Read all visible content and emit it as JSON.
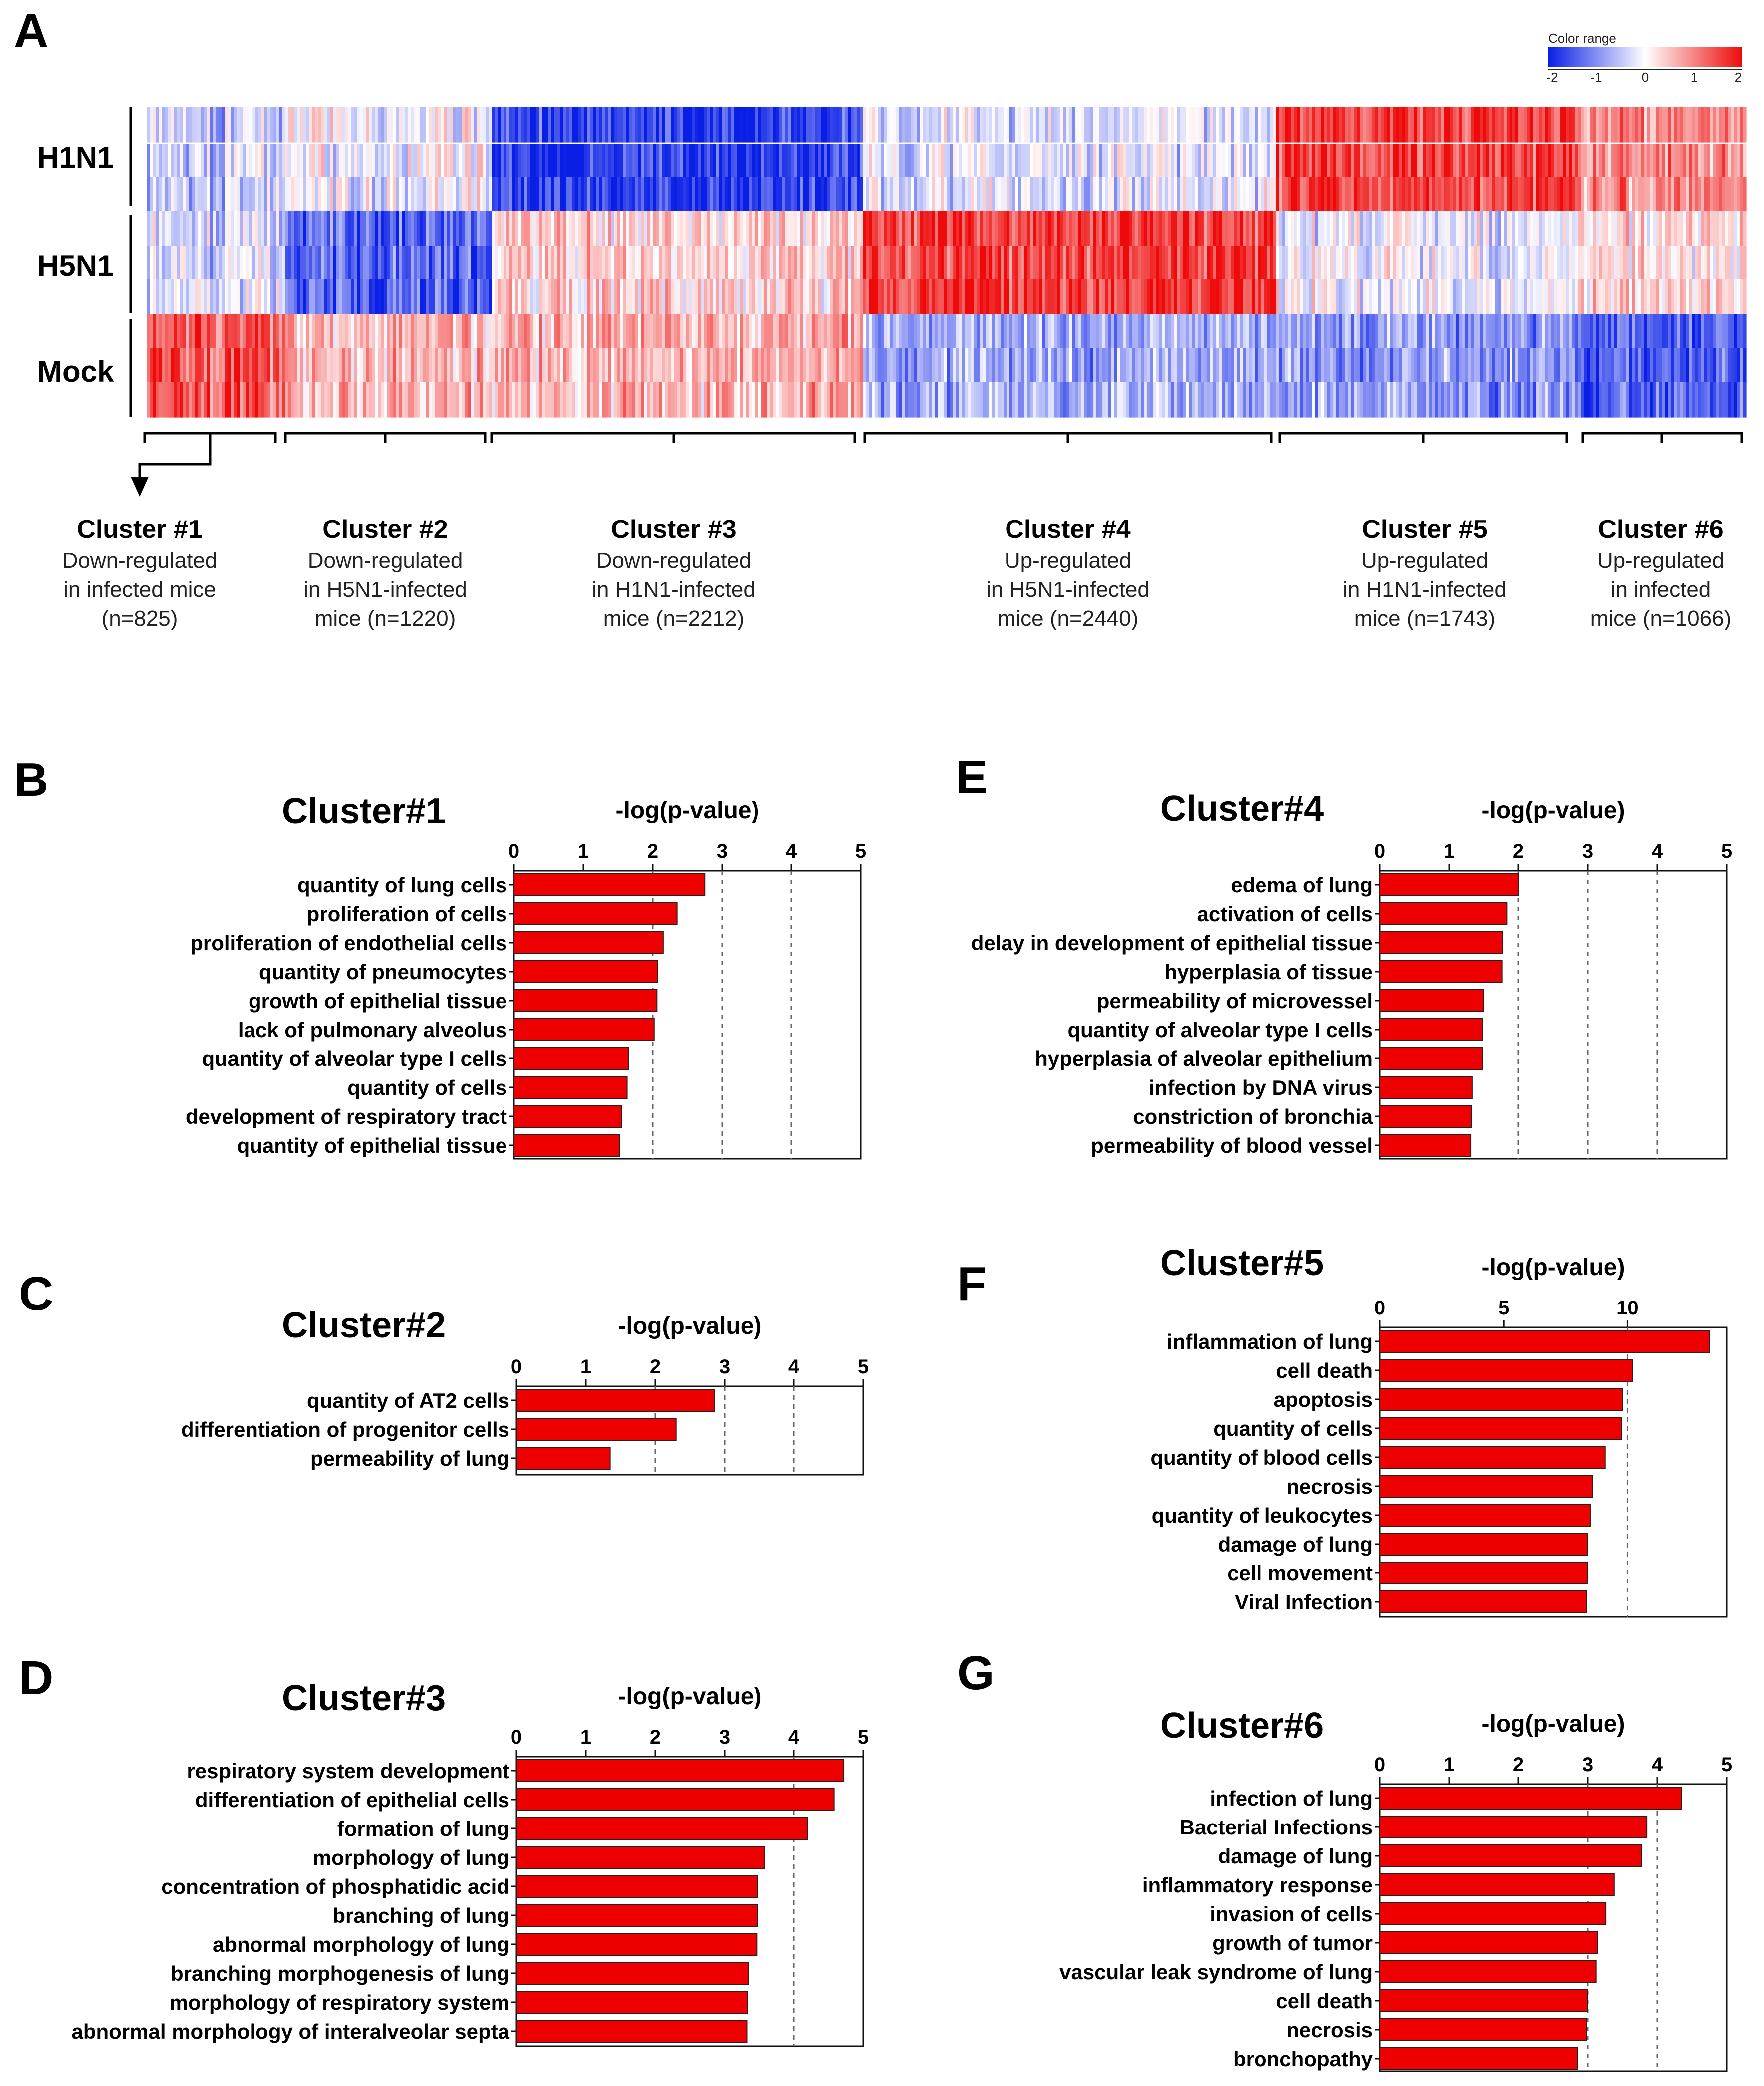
{
  "panels": {
    "A": "A",
    "B": "B",
    "C": "C",
    "D": "D",
    "E": "E",
    "F": "F",
    "G": "G"
  },
  "heatmap": {
    "rows": [
      "H1N1",
      "H5N1",
      "Mock"
    ],
    "legend": {
      "title": "Color range",
      "ticks": [
        "-2",
        "-1",
        "0",
        "1",
        "2"
      ],
      "low_color": "#0a1fe6",
      "mid_color": "#ffffff",
      "high_color": "#ee0a0a"
    },
    "clusters": [
      {
        "title": "Cluster #1",
        "line1": "Down-regulated",
        "line2": "in infected mice",
        "line3": "(n=825)",
        "n": 825
      },
      {
        "title": "Cluster #2",
        "line1": "Down-regulated",
        "line2": "in H5N1-infected",
        "line3": "mice (n=1220)",
        "n": 1220
      },
      {
        "title": "Cluster #3",
        "line1": "Down-regulated",
        "line2": "in H1N1-infected",
        "line3": "mice (n=2212)",
        "n": 2212
      },
      {
        "title": "Cluster #4",
        "line1": "Up-regulated",
        "line2": "in H5N1-infected",
        "line3": "mice (n=2440)",
        "n": 2440
      },
      {
        "title": "Cluster #5",
        "line1": "Up-regulated",
        "line2": "in H1N1-infected",
        "line3": "mice (n=1743)",
        "n": 1743
      },
      {
        "title": "Cluster #6",
        "line1": "Up-regulated",
        "line2": "in infected",
        "line3": "mice (n=1066)",
        "n": 1066
      }
    ]
  },
  "chart_data": [
    {
      "panel": "B",
      "type": "bar",
      "orientation": "horizontal",
      "title": "Cluster#1",
      "xlabel": "-log(p-value)",
      "xlim": [
        0,
        5
      ],
      "xticks": [
        "0",
        "1",
        "2",
        "3",
        "4",
        "5"
      ],
      "gridlines": [
        2,
        3,
        4
      ],
      "categories": [
        "quantity of lung cells",
        "proliferation of cells",
        "proliferation of endothelial cells",
        "quantity of pneumocytes",
        "growth of epithelial tissue",
        "lack of pulmonary alveolus",
        "quantity of alveolar type I cells",
        "quantity of cells",
        "development of respiratory tract",
        "quantity of epithelial tissue"
      ],
      "values": [
        2.75,
        2.35,
        2.15,
        2.07,
        2.06,
        2.02,
        1.65,
        1.63,
        1.55,
        1.52
      ]
    },
    {
      "panel": "C",
      "type": "bar",
      "orientation": "horizontal",
      "title": "Cluster#2",
      "xlabel": "-log(p-value)",
      "xlim": [
        0,
        5
      ],
      "xticks": [
        "0",
        "1",
        "2",
        "3",
        "4",
        "5"
      ],
      "gridlines": [
        2,
        3,
        4
      ],
      "categories": [
        "quantity of AT2 cells",
        "differentiation of progenitor cells",
        "permeability of lung"
      ],
      "values": [
        2.85,
        2.3,
        1.35
      ]
    },
    {
      "panel": "D",
      "type": "bar",
      "orientation": "horizontal",
      "title": "Cluster#3",
      "xlabel": "-log(p-value)",
      "xlim": [
        0,
        5
      ],
      "xticks": [
        "0",
        "1",
        "2",
        "3",
        "4",
        "5"
      ],
      "gridlines": [
        4
      ],
      "categories": [
        "respiratory system development",
        "differentiation of epithelial cells",
        "formation of lung",
        "morphology of lung",
        "concentration of phosphatidic acid",
        "branching of lung",
        "abnormal morphology of lung",
        "branching morphogenesis of lung",
        "morphology of respiratory system",
        "abnormal morphology of interalveolar septa"
      ],
      "values": [
        4.72,
        4.58,
        4.2,
        3.58,
        3.48,
        3.48,
        3.47,
        3.34,
        3.33,
        3.32
      ]
    },
    {
      "panel": "E",
      "type": "bar",
      "orientation": "horizontal",
      "title": "Cluster#4",
      "xlabel": "-log(p-value)",
      "xlim": [
        0,
        5
      ],
      "xticks": [
        "0",
        "1",
        "2",
        "3",
        "4",
        "5"
      ],
      "gridlines": [
        2,
        3,
        4
      ],
      "categories": [
        "edema of lung",
        "activation of cells",
        "delay in development of epithelial tissue",
        "hyperplasia of tissue",
        "permeability of microvessel",
        "quantity of alveolar type I cells",
        "hyperplasia of alveolar epithelium",
        "infection by DNA virus",
        "constriction of bronchia",
        "permeability of blood vessel"
      ],
      "values": [
        2.0,
        1.83,
        1.77,
        1.76,
        1.49,
        1.48,
        1.48,
        1.33,
        1.32,
        1.31
      ]
    },
    {
      "panel": "F",
      "type": "bar",
      "orientation": "horizontal",
      "title": "Cluster#5",
      "xlabel": "-log(p-value)",
      "xlim": [
        0,
        14
      ],
      "xticks": [
        "0",
        "5",
        "10"
      ],
      "tickvalues": [
        0,
        5,
        10
      ],
      "gridlines": [
        10
      ],
      "categories": [
        "inflammation of lung",
        "cell death",
        "apoptosis",
        "quantity of cells",
        "quantity of blood cells",
        "necrosis",
        "quantity of leukocytes",
        "damage of lung",
        "cell movement",
        "Viral Infection"
      ],
      "values": [
        13.3,
        10.2,
        9.8,
        9.75,
        9.1,
        8.6,
        8.5,
        8.4,
        8.38,
        8.36
      ]
    },
    {
      "panel": "G",
      "type": "bar",
      "orientation": "horizontal",
      "title": "Cluster#6",
      "xlabel": "-log(p-value)",
      "xlim": [
        0,
        5
      ],
      "xticks": [
        "0",
        "1",
        "2",
        "3",
        "4",
        "5"
      ],
      "gridlines": [
        3,
        4
      ],
      "categories": [
        "infection of lung",
        "Bacterial Infections",
        "damage of lung",
        "inflammatory response",
        "invasion of cells",
        "growth of tumor",
        "vascular leak syndrome of lung",
        "cell death",
        "necrosis",
        "bronchopathy"
      ],
      "values": [
        4.35,
        3.85,
        3.77,
        3.38,
        3.26,
        3.14,
        3.12,
        3.0,
        2.98,
        2.85
      ]
    }
  ]
}
